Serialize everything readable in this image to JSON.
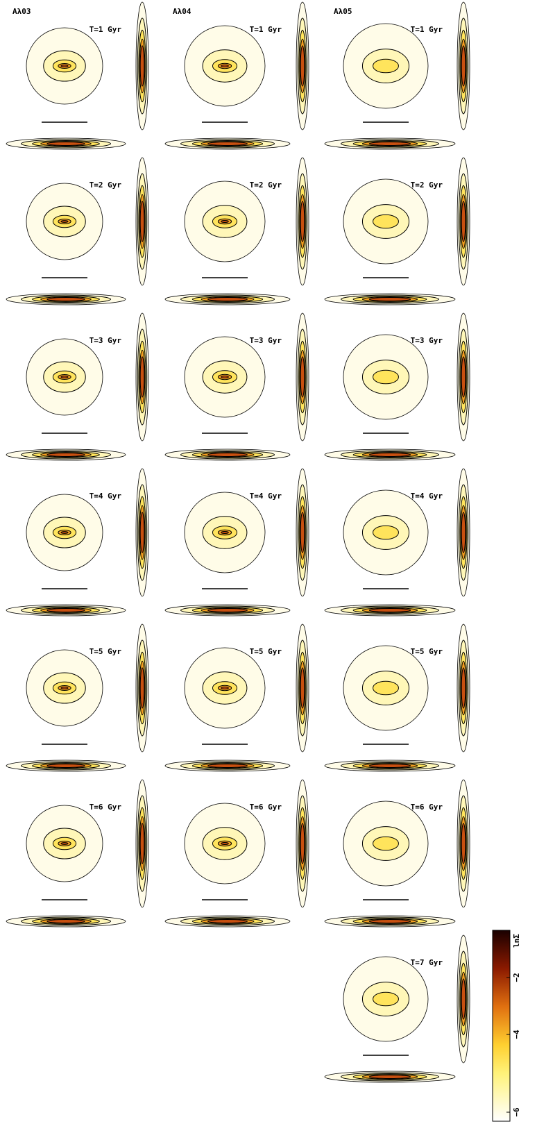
{
  "columns": [
    {
      "model": "Aλ03",
      "panels": [
        "T=1 Gyr",
        "T=2 Gyr",
        "T=3 Gyr",
        "T=4 Gyr",
        "T=5 Gyr",
        "T=6 Gyr"
      ]
    },
    {
      "model": "Aλ04",
      "panels": [
        "T=1 Gyr",
        "T=2 Gyr",
        "T=3 Gyr",
        "T=4 Gyr",
        "T=5 Gyr",
        "T=6 Gyr"
      ]
    },
    {
      "model": "Aλ05",
      "panels": [
        "T=1 Gyr",
        "T=2 Gyr",
        "T=3 Gyr",
        "T=4 Gyr",
        "T=5 Gyr",
        "T=6 Gyr",
        "T=7 Gyr"
      ]
    }
  ],
  "colorbar": {
    "label": "lnΣ",
    "ticks": [
      "−2",
      "−4",
      "−6"
    ]
  }
}
